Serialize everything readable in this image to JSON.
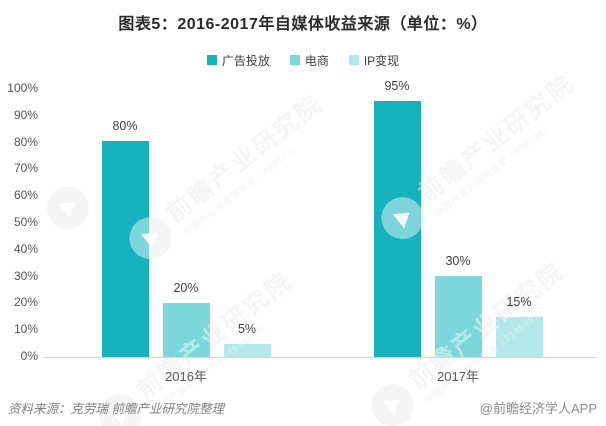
{
  "title": "图表5：2016-2017年自媒体收益来源（单位：%）",
  "chart_data": {
    "type": "bar",
    "title": "图表5：2016-2017年自媒体收益来源（单位：%）",
    "categories": [
      "2016年",
      "2017年"
    ],
    "series": [
      {
        "name": "广告投放",
        "color": "#15b1bd",
        "values": [
          80,
          95
        ]
      },
      {
        "name": "电商",
        "color": "#7cd7dc",
        "values": [
          20,
          30
        ]
      },
      {
        "name": "IP变现",
        "color": "#b2e8ec",
        "values": [
          5,
          15
        ]
      }
    ],
    "xlabel": "",
    "ylabel": "",
    "ylim": [
      0,
      100
    ],
    "ytick_step": 10,
    "ytick_labels": [
      "0%",
      "10%",
      "20%",
      "30%",
      "40%",
      "50%",
      "60%",
      "70%",
      "80%",
      "90%",
      "100%"
    ],
    "value_labels": [
      "80%",
      "20%",
      "5%",
      "95%",
      "30%",
      "15%"
    ],
    "grid": false,
    "legend_position": "top"
  },
  "watermark": {
    "big_text": "前瞻产业研究院",
    "small_text": "中国产业咨询领导者（839599）"
  },
  "footer": {
    "source": "资料来源：克劳瑞 前瞻产业研究院整理",
    "credit": "@前瞻经济学人APP"
  }
}
